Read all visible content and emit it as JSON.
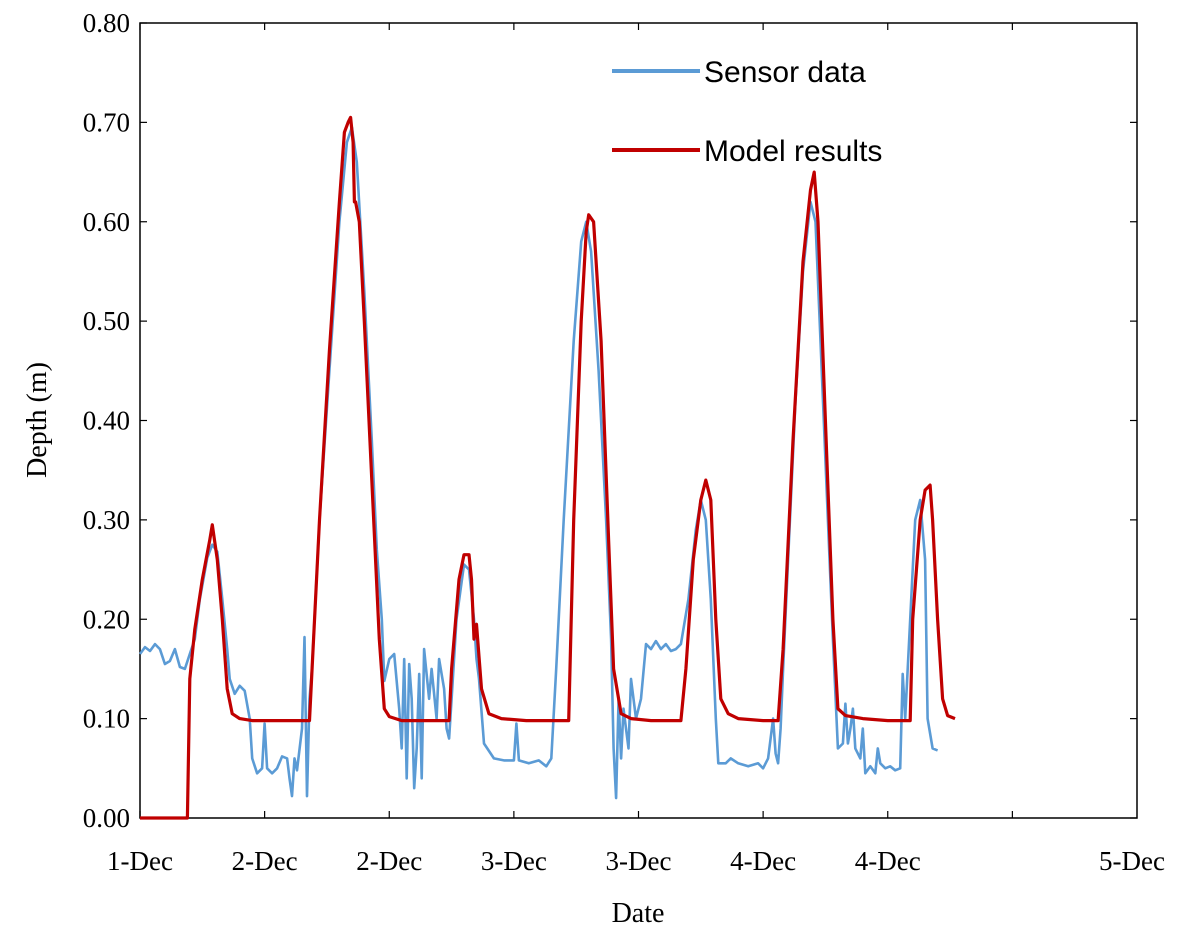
{
  "chart_data": {
    "type": "line",
    "title": "",
    "xlabel": "Date",
    "ylabel": "Depth (m)",
    "x_unit": "days since 1-Dec 00:00",
    "xlim": [
      0,
      4
    ],
    "ylim": [
      0,
      0.8
    ],
    "x_ticks": [
      {
        "x": 0,
        "label": "1-Dec"
      },
      {
        "x": 0.5,
        "label": "2-Dec"
      },
      {
        "x": 1.0,
        "label": "2-Dec"
      },
      {
        "x": 1.5,
        "label": "3-Dec"
      },
      {
        "x": 2.0,
        "label": "3-Dec"
      },
      {
        "x": 2.5,
        "label": "4-Dec"
      },
      {
        "x": 3.0,
        "label": "4-Dec"
      },
      {
        "x": 3.5,
        "label": "5-Dec"
      }
    ],
    "y_ticks": [
      "0.00",
      "0.10",
      "0.20",
      "0.30",
      "0.40",
      "0.50",
      "0.60",
      "0.70",
      "0.80"
    ],
    "grid": false,
    "legend_position": "top-right",
    "series": [
      {
        "name": "Sensor data",
        "color": "#5b9bd5",
        "points": [
          [
            0,
            0.165
          ],
          [
            0.02,
            0.172
          ],
          [
            0.04,
            0.168
          ],
          [
            0.06,
            0.175
          ],
          [
            0.08,
            0.17
          ],
          [
            0.1,
            0.155
          ],
          [
            0.12,
            0.158
          ],
          [
            0.14,
            0.17
          ],
          [
            0.16,
            0.152
          ],
          [
            0.18,
            0.15
          ],
          [
            0.2,
            0.165
          ],
          [
            0.22,
            0.18
          ],
          [
            0.24,
            0.22
          ],
          [
            0.27,
            0.262
          ],
          [
            0.29,
            0.275
          ],
          [
            0.31,
            0.268
          ],
          [
            0.33,
            0.22
          ],
          [
            0.35,
            0.17
          ],
          [
            0.36,
            0.14
          ],
          [
            0.38,
            0.125
          ],
          [
            0.4,
            0.133
          ],
          [
            0.42,
            0.128
          ],
          [
            0.44,
            0.1
          ],
          [
            0.45,
            0.06
          ],
          [
            0.47,
            0.045
          ],
          [
            0.49,
            0.05
          ],
          [
            0.5,
            0.095
          ],
          [
            0.51,
            0.05
          ],
          [
            0.53,
            0.045
          ],
          [
            0.55,
            0.05
          ],
          [
            0.57,
            0.062
          ],
          [
            0.59,
            0.06
          ],
          [
            0.6,
            0.04
          ],
          [
            0.61,
            0.022
          ],
          [
            0.62,
            0.06
          ],
          [
            0.63,
            0.048
          ],
          [
            0.65,
            0.09
          ],
          [
            0.66,
            0.182
          ],
          [
            0.67,
            0.022
          ],
          [
            0.68,
            0.12
          ],
          [
            0.69,
            0.15
          ],
          [
            0.7,
            0.2
          ],
          [
            0.72,
            0.3
          ],
          [
            0.76,
            0.45
          ],
          [
            0.8,
            0.6
          ],
          [
            0.83,
            0.68
          ],
          [
            0.85,
            0.695
          ],
          [
            0.87,
            0.66
          ],
          [
            0.9,
            0.53
          ],
          [
            0.93,
            0.38
          ],
          [
            0.95,
            0.27
          ],
          [
            0.97,
            0.2
          ],
          [
            0.98,
            0.138
          ],
          [
            1.0,
            0.16
          ],
          [
            1.02,
            0.165
          ],
          [
            1.04,
            0.11
          ],
          [
            1.05,
            0.07
          ],
          [
            1.06,
            0.16
          ],
          [
            1.07,
            0.04
          ],
          [
            1.08,
            0.155
          ],
          [
            1.09,
            0.12
          ],
          [
            1.1,
            0.03
          ],
          [
            1.11,
            0.07
          ],
          [
            1.12,
            0.145
          ],
          [
            1.13,
            0.04
          ],
          [
            1.14,
            0.17
          ],
          [
            1.16,
            0.12
          ],
          [
            1.17,
            0.15
          ],
          [
            1.19,
            0.1
          ],
          [
            1.2,
            0.16
          ],
          [
            1.22,
            0.13
          ],
          [
            1.23,
            0.09
          ],
          [
            1.24,
            0.08
          ],
          [
            1.25,
            0.12
          ],
          [
            1.27,
            0.2
          ],
          [
            1.3,
            0.255
          ],
          [
            1.32,
            0.25
          ],
          [
            1.34,
            0.2
          ],
          [
            1.35,
            0.16
          ],
          [
            1.36,
            0.14
          ],
          [
            1.38,
            0.075
          ],
          [
            1.42,
            0.06
          ],
          [
            1.46,
            0.058
          ],
          [
            1.5,
            0.058
          ],
          [
            1.51,
            0.095
          ],
          [
            1.52,
            0.058
          ],
          [
            1.56,
            0.055
          ],
          [
            1.6,
            0.058
          ],
          [
            1.63,
            0.052
          ],
          [
            1.65,
            0.06
          ],
          [
            1.67,
            0.15
          ],
          [
            1.7,
            0.3
          ],
          [
            1.74,
            0.48
          ],
          [
            1.77,
            0.58
          ],
          [
            1.79,
            0.6
          ],
          [
            1.81,
            0.57
          ],
          [
            1.84,
            0.45
          ],
          [
            1.87,
            0.3
          ],
          [
            1.89,
            0.18
          ],
          [
            1.9,
            0.07
          ],
          [
            1.91,
            0.02
          ],
          [
            1.92,
            0.12
          ],
          [
            1.93,
            0.06
          ],
          [
            1.94,
            0.11
          ],
          [
            1.96,
            0.07
          ],
          [
            1.97,
            0.14
          ],
          [
            1.99,
            0.1
          ],
          [
            2.01,
            0.12
          ],
          [
            2.03,
            0.175
          ],
          [
            2.05,
            0.17
          ],
          [
            2.07,
            0.178
          ],
          [
            2.09,
            0.17
          ],
          [
            2.11,
            0.175
          ],
          [
            2.13,
            0.168
          ],
          [
            2.15,
            0.17
          ],
          [
            2.17,
            0.175
          ],
          [
            2.2,
            0.22
          ],
          [
            2.23,
            0.29
          ],
          [
            2.25,
            0.32
          ],
          [
            2.27,
            0.3
          ],
          [
            2.29,
            0.22
          ],
          [
            2.3,
            0.16
          ],
          [
            2.31,
            0.1
          ],
          [
            2.32,
            0.055
          ],
          [
            2.35,
            0.055
          ],
          [
            2.37,
            0.06
          ],
          [
            2.4,
            0.055
          ],
          [
            2.44,
            0.052
          ],
          [
            2.48,
            0.055
          ],
          [
            2.5,
            0.05
          ],
          [
            2.52,
            0.06
          ],
          [
            2.54,
            0.1
          ],
          [
            2.55,
            0.065
          ],
          [
            2.56,
            0.055
          ],
          [
            2.57,
            0.09
          ],
          [
            2.58,
            0.15
          ],
          [
            2.6,
            0.26
          ],
          [
            2.63,
            0.42
          ],
          [
            2.66,
            0.55
          ],
          [
            2.69,
            0.62
          ],
          [
            2.71,
            0.6
          ],
          [
            2.73,
            0.48
          ],
          [
            2.76,
            0.3
          ],
          [
            2.78,
            0.18
          ],
          [
            2.8,
            0.07
          ],
          [
            2.82,
            0.075
          ],
          [
            2.83,
            0.115
          ],
          [
            2.84,
            0.075
          ],
          [
            2.85,
            0.09
          ],
          [
            2.86,
            0.11
          ],
          [
            2.87,
            0.07
          ],
          [
            2.89,
            0.06
          ],
          [
            2.9,
            0.09
          ],
          [
            2.91,
            0.045
          ],
          [
            2.93,
            0.052
          ],
          [
            2.95,
            0.045
          ],
          [
            2.96,
            0.07
          ],
          [
            2.97,
            0.055
          ],
          [
            2.99,
            0.05
          ],
          [
            3.01,
            0.052
          ],
          [
            3.03,
            0.048
          ],
          [
            3.05,
            0.05
          ],
          [
            3.06,
            0.145
          ],
          [
            3.07,
            0.1
          ],
          [
            3.09,
            0.2
          ],
          [
            3.11,
            0.3
          ],
          [
            3.13,
            0.32
          ],
          [
            3.15,
            0.26
          ],
          [
            3.16,
            0.1
          ],
          [
            3.18,
            0.07
          ],
          [
            3.2,
            0.068
          ]
        ]
      },
      {
        "name": "Model results",
        "color": "#c00000",
        "points": [
          [
            0,
            0.0
          ],
          [
            0.19,
            0.0
          ],
          [
            0.2,
            0.14
          ],
          [
            0.22,
            0.19
          ],
          [
            0.25,
            0.24
          ],
          [
            0.28,
            0.28
          ],
          [
            0.29,
            0.295
          ],
          [
            0.31,
            0.26
          ],
          [
            0.33,
            0.2
          ],
          [
            0.35,
            0.13
          ],
          [
            0.37,
            0.105
          ],
          [
            0.4,
            0.1
          ],
          [
            0.45,
            0.098
          ],
          [
            0.55,
            0.098
          ],
          [
            0.68,
            0.098
          ],
          [
            0.72,
            0.3
          ],
          [
            0.76,
            0.47
          ],
          [
            0.8,
            0.62
          ],
          [
            0.82,
            0.69
          ],
          [
            0.835,
            0.7
          ],
          [
            0.845,
            0.705
          ],
          [
            0.855,
            0.68
          ],
          [
            0.86,
            0.62
          ],
          [
            0.865,
            0.62
          ],
          [
            0.88,
            0.6
          ],
          [
            0.9,
            0.5
          ],
          [
            0.93,
            0.34
          ],
          [
            0.96,
            0.18
          ],
          [
            0.98,
            0.11
          ],
          [
            1.0,
            0.102
          ],
          [
            1.05,
            0.098
          ],
          [
            1.15,
            0.098
          ],
          [
            1.24,
            0.098
          ],
          [
            1.25,
            0.15
          ],
          [
            1.28,
            0.24
          ],
          [
            1.3,
            0.265
          ],
          [
            1.32,
            0.265
          ],
          [
            1.33,
            0.24
          ],
          [
            1.34,
            0.18
          ],
          [
            1.35,
            0.195
          ],
          [
            1.37,
            0.13
          ],
          [
            1.4,
            0.105
          ],
          [
            1.45,
            0.1
          ],
          [
            1.55,
            0.098
          ],
          [
            1.72,
            0.098
          ],
          [
            1.74,
            0.3
          ],
          [
            1.77,
            0.5
          ],
          [
            1.79,
            0.59
          ],
          [
            1.8,
            0.607
          ],
          [
            1.82,
            0.6
          ],
          [
            1.85,
            0.48
          ],
          [
            1.88,
            0.28
          ],
          [
            1.9,
            0.15
          ],
          [
            1.93,
            0.105
          ],
          [
            1.97,
            0.1
          ],
          [
            2.05,
            0.098
          ],
          [
            2.17,
            0.098
          ],
          [
            2.19,
            0.15
          ],
          [
            2.22,
            0.26
          ],
          [
            2.25,
            0.32
          ],
          [
            2.27,
            0.34
          ],
          [
            2.29,
            0.32
          ],
          [
            2.31,
            0.2
          ],
          [
            2.33,
            0.12
          ],
          [
            2.36,
            0.105
          ],
          [
            2.4,
            0.1
          ],
          [
            2.5,
            0.098
          ],
          [
            2.56,
            0.098
          ],
          [
            2.58,
            0.17
          ],
          [
            2.62,
            0.38
          ],
          [
            2.66,
            0.56
          ],
          [
            2.69,
            0.632
          ],
          [
            2.705,
            0.65
          ],
          [
            2.72,
            0.6
          ],
          [
            2.75,
            0.4
          ],
          [
            2.78,
            0.2
          ],
          [
            2.8,
            0.11
          ],
          [
            2.83,
            0.103
          ],
          [
            2.9,
            0.1
          ],
          [
            3.0,
            0.098
          ],
          [
            3.09,
            0.098
          ],
          [
            3.1,
            0.2
          ],
          [
            3.13,
            0.3
          ],
          [
            3.15,
            0.33
          ],
          [
            3.17,
            0.335
          ],
          [
            3.18,
            0.3
          ],
          [
            3.2,
            0.2
          ],
          [
            3.22,
            0.12
          ],
          [
            3.24,
            0.103
          ],
          [
            3.27,
            0.1
          ]
        ]
      }
    ]
  }
}
